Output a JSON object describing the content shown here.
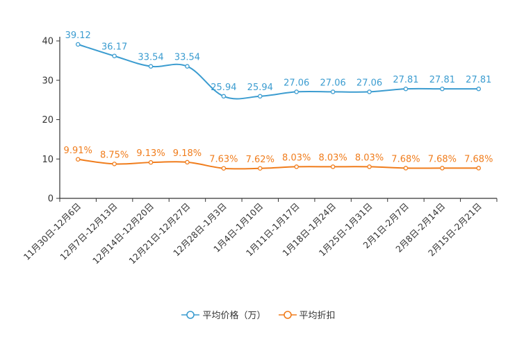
{
  "chart_data": {
    "type": "line",
    "categories": [
      "11月30日-12月6日",
      "12月7日-12月13日",
      "12月14日-12月20日",
      "12月21日-12月27日",
      "12月28日-1月3日",
      "1月4日-1月10日",
      "1月11日-1月17日",
      "1月18日-1月24日",
      "1月25日-1月31日",
      "2月1日-2月7日",
      "2月8日-2月14日",
      "2月15日-2月21日"
    ],
    "series": [
      {
        "name": "平均价格（万）",
        "color": "#3b9cd0",
        "values": [
          39.12,
          36.17,
          33.54,
          33.54,
          25.94,
          25.94,
          27.06,
          27.06,
          27.06,
          27.81,
          27.81,
          27.81
        ],
        "labels": [
          "39.12",
          "36.17",
          "33.54",
          "33.54",
          "25.94",
          "25.94",
          "27.06",
          "27.06",
          "27.06",
          "27.81",
          "27.81",
          "27.81"
        ]
      },
      {
        "name": "平均折扣",
        "color": "#f07c1b",
        "values": [
          9.91,
          8.75,
          9.13,
          9.18,
          7.63,
          7.62,
          8.03,
          8.03,
          8.03,
          7.68,
          7.68,
          7.68
        ],
        "labels": [
          "9.91%",
          "8.75%",
          "9.13%",
          "9.18%",
          "7.63%",
          "7.62%",
          "8.03%",
          "8.03%",
          "8.03%",
          "7.68%",
          "7.68%",
          "7.68%"
        ]
      }
    ],
    "y_ticks": [
      "0",
      "10",
      "20",
      "30",
      "40"
    ],
    "ylim": [
      0,
      40
    ],
    "title": "",
    "xlabel": "",
    "ylabel": "",
    "legend_position": "bottom-center"
  }
}
